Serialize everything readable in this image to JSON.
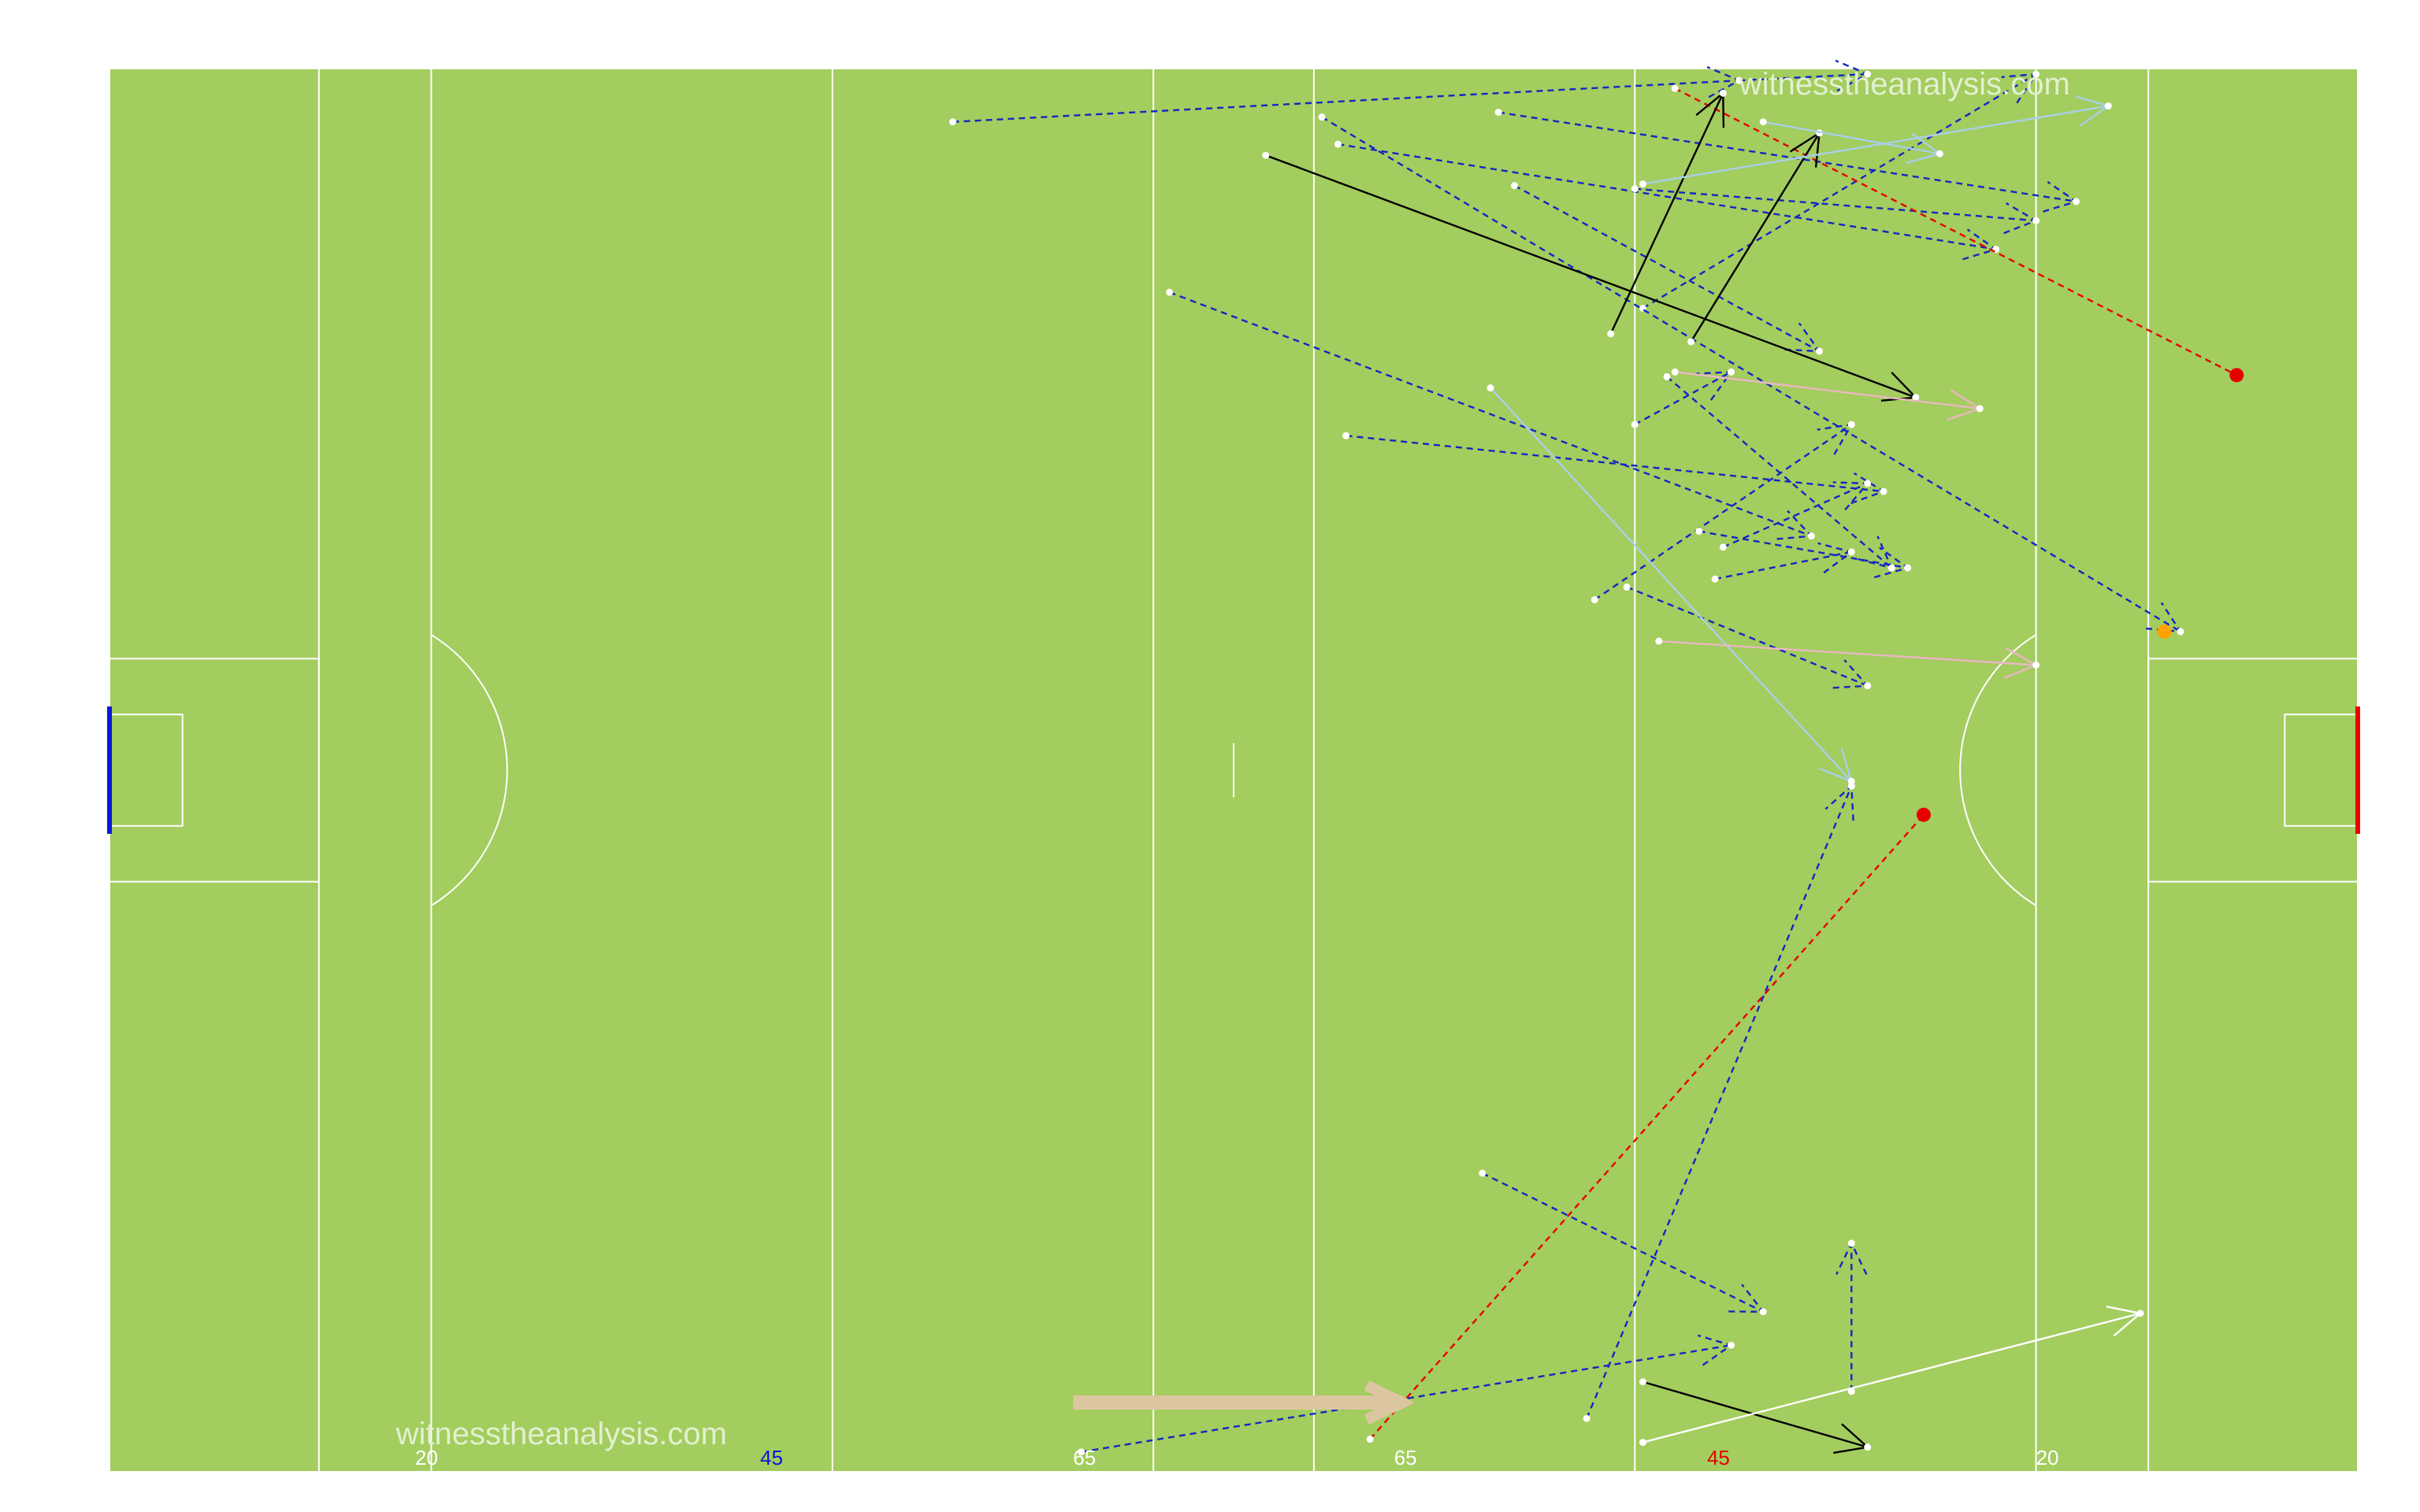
{
  "watermarks": {
    "top": "witnesstheanalysis.com",
    "bottom": "witnesstheanalysis.com"
  },
  "line_labels": [
    "20",
    "45",
    "65",
    "65",
    "45",
    "20"
  ],
  "colors": {
    "pitch": "#a3cd5e",
    "pitch_lines": "#ffffff",
    "left_goal": "#0b18d6",
    "right_goal": "#e80000",
    "left_label": "#0b18d6",
    "right_label": "#e80000",
    "neutral_label": "#ffffff",
    "kickout_pass": "#1426c4",
    "shot": "#e80000",
    "carry": "#000000",
    "light_blue_pass": "#a9cfe8",
    "pink_pass": "#eab7c2",
    "white_pass": "#ffffff",
    "orange_end": "#ffa200",
    "thick_arrow": "#dcc6a0"
  },
  "chart_data": {
    "type": "scatter",
    "x_axis": "pitch length",
    "line_markers": [
      {
        "label": "20",
        "color": "neutral_label"
      },
      {
        "label": "45",
        "color": "left_label"
      },
      {
        "label": "65",
        "color": "neutral_label"
      },
      {
        "label": "65",
        "color": "neutral_label"
      },
      {
        "label": "45",
        "color": "right_label"
      },
      {
        "label": "20",
        "color": "neutral_label"
      }
    ],
    "grid": false,
    "legend": "none",
    "pitch": {
      "length": 140,
      "width": 88
    },
    "events": [
      {
        "style": "dashed",
        "color": "kickout_pass",
        "x": [
          52.5,
          101.5
        ],
        "y": [
          84.7,
          87.3
        ],
        "end_marker": "arrow"
      },
      {
        "style": "dashed",
        "color": "kickout_pass",
        "x": [
          101.5,
          109.5
        ],
        "y": [
          87.3,
          87.7
        ],
        "end_marker": "arrow"
      },
      {
        "style": "dashed",
        "color": "kickout_pass",
        "x": [
          86.5,
          122.5
        ],
        "y": [
          85.3,
          79.7
        ],
        "end_marker": "arrow"
      },
      {
        "style": "dashed",
        "color": "kickout_pass",
        "x": [
          76.5,
          117.5
        ],
        "y": [
          83.3,
          76.7
        ],
        "end_marker": "arrow"
      },
      {
        "style": "dashed",
        "color": "kickout_pass",
        "x": [
          95.0,
          120.0
        ],
        "y": [
          80.5,
          78.5
        ],
        "end_marker": "arrow"
      },
      {
        "style": "dashed",
        "color": "kickout_pass",
        "x": [
          87.5,
          106.5
        ],
        "y": [
          80.7,
          70.3
        ],
        "end_marker": "arrow"
      },
      {
        "style": "dashed",
        "color": "kickout_pass",
        "x": [
          66.0,
          106.0
        ],
        "y": [
          74.0,
          58.7
        ],
        "end_marker": "arrow"
      },
      {
        "style": "dashed",
        "color": "kickout_pass",
        "x": [
          95.5,
          120.0
        ],
        "y": [
          73.0,
          87.7
        ],
        "end_marker": "arrow"
      },
      {
        "style": "dashed",
        "color": "kickout_pass",
        "x": [
          77.0,
          110.5
        ],
        "y": [
          65.0,
          61.5
        ],
        "end_marker": "arrow"
      },
      {
        "style": "dashed",
        "color": "kickout_pass",
        "x": [
          95.0,
          101.0
        ],
        "y": [
          65.7,
          69.0
        ],
        "end_marker": "arrow"
      },
      {
        "style": "dashed",
        "color": "kickout_pass",
        "x": [
          97.0,
          111.0
        ],
        "y": [
          68.7,
          56.7
        ],
        "end_marker": "arrow"
      },
      {
        "style": "dashed",
        "color": "kickout_pass",
        "x": [
          92.5,
          108.5
        ],
        "y": [
          54.7,
          65.7
        ],
        "end_marker": "arrow"
      },
      {
        "style": "dashed",
        "color": "kickout_pass",
        "x": [
          99.0,
          112.0
        ],
        "y": [
          59.0,
          56.7
        ],
        "end_marker": "arrow"
      },
      {
        "style": "dashed",
        "color": "kickout_pass",
        "x": [
          100.0,
          108.5
        ],
        "y": [
          56.0,
          57.7
        ],
        "end_marker": "arrow"
      },
      {
        "style": "dashed",
        "color": "kickout_pass",
        "x": [
          94.5,
          109.5
        ],
        "y": [
          55.5,
          49.3
        ],
        "end_marker": "arrow"
      },
      {
        "style": "dashed",
        "color": "kickout_pass",
        "x": [
          100.5,
          109.5
        ],
        "y": [
          58.0,
          62.0
        ],
        "end_marker": "arrow"
      },
      {
        "style": "dashed",
        "color": "kickout_pass",
        "x": [
          75.5,
          129.0
        ],
        "y": [
          85.0,
          52.7
        ],
        "end_marker": "arrow"
      },
      {
        "style": "dashed",
        "color": "kickout_pass",
        "x": [
          108.5,
          108.5
        ],
        "y": [
          5.0,
          14.3
        ],
        "end_marker": "arrow"
      },
      {
        "style": "dashed",
        "color": "kickout_pass",
        "x": [
          92.0,
          108.5
        ],
        "y": [
          3.3,
          43.0
        ],
        "end_marker": "arrow"
      },
      {
        "style": "dashed",
        "color": "kickout_pass",
        "x": [
          85.5,
          103.0
        ],
        "y": [
          18.7,
          10.0
        ],
        "end_marker": "arrow"
      },
      {
        "style": "dashed",
        "color": "kickout_pass",
        "x": [
          60.5,
          101.0
        ],
        "y": [
          1.2,
          7.9
        ],
        "end_marker": "arrow"
      },
      {
        "style": "dashed",
        "color": "shot",
        "x": [
          97.5,
          132.5
        ],
        "y": [
          86.8,
          68.8
        ],
        "end_marker": "dot"
      },
      {
        "style": "dashed",
        "color": "shot",
        "x": [
          78.5,
          113.0
        ],
        "y": [
          2.0,
          41.2
        ],
        "end_marker": "dot"
      },
      {
        "style": "dashed",
        "color": "orange_end",
        "x": [
          128.0,
          128.0
        ],
        "y": [
          52.7,
          52.7
        ],
        "end_marker": "dot"
      },
      {
        "style": "solid",
        "color": "carry",
        "x": [
          72.0,
          112.5
        ],
        "y": [
          82.6,
          67.4
        ],
        "end_marker": "arrow"
      },
      {
        "style": "solid",
        "color": "carry",
        "x": [
          93.5,
          100.5
        ],
        "y": [
          71.4,
          86.5
        ],
        "end_marker": "arrow"
      },
      {
        "style": "solid",
        "color": "carry",
        "x": [
          98.5,
          106.5
        ],
        "y": [
          70.9,
          84.0
        ],
        "end_marker": "arrow"
      },
      {
        "style": "solid",
        "color": "carry",
        "x": [
          95.5,
          109.5
        ],
        "y": [
          5.6,
          1.5
        ],
        "end_marker": "arrow"
      },
      {
        "style": "solid",
        "color": "light_blue_pass",
        "x": [
          95.5,
          124.5
        ],
        "y": [
          80.8,
          85.7
        ],
        "end_marker": "arrow"
      },
      {
        "style": "solid",
        "color": "light_blue_pass",
        "x": [
          86.0,
          108.5
        ],
        "y": [
          68.0,
          43.3
        ],
        "end_marker": "arrow"
      },
      {
        "style": "solid",
        "color": "light_blue_pass",
        "x": [
          103.0,
          114.0
        ],
        "y": [
          84.7,
          82.7
        ],
        "end_marker": "arrow"
      },
      {
        "style": "solid",
        "color": "pink_pass",
        "x": [
          97.5,
          116.5
        ],
        "y": [
          69.0,
          66.7
        ],
        "end_marker": "arrow"
      },
      {
        "style": "solid",
        "color": "pink_pass",
        "x": [
          96.5,
          120.0
        ],
        "y": [
          52.1,
          50.6
        ],
        "end_marker": "arrow"
      },
      {
        "style": "solid",
        "color": "white_pass",
        "x": [
          95.5,
          126.5
        ],
        "y": [
          1.8,
          9.9
        ],
        "end_marker": "arrow"
      },
      {
        "style": "solid",
        "color": "thick_arrow",
        "x": [
          60.0,
          80.5
        ],
        "y": [
          4.3,
          4.3
        ],
        "end_marker": "arrow"
      }
    ]
  }
}
